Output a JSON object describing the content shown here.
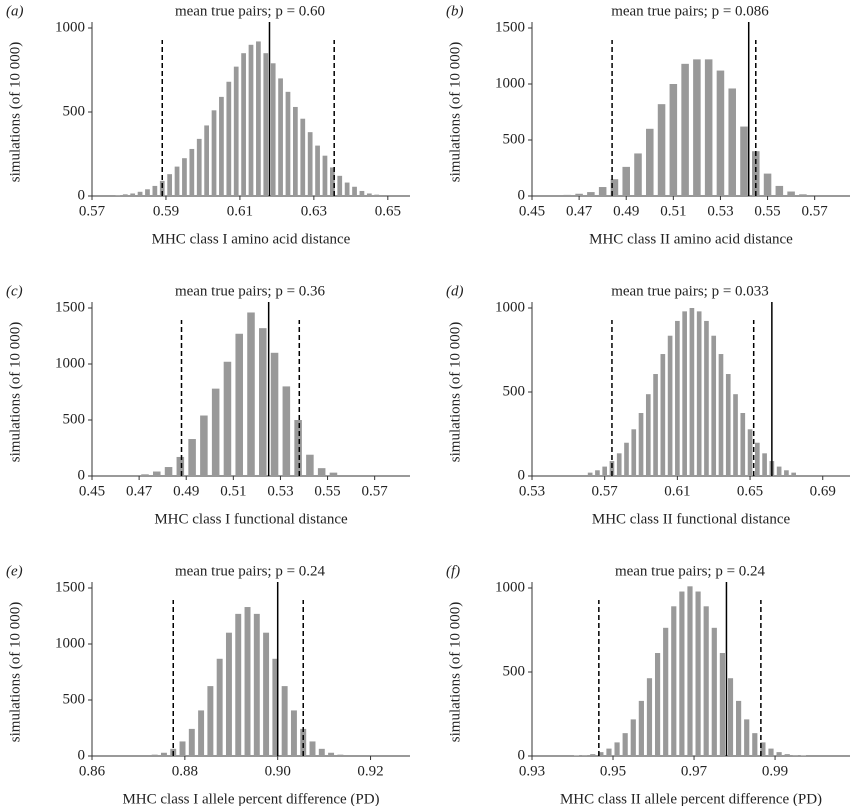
{
  "chart_data": [
    {
      "type": "bar",
      "panel": "(a)",
      "title": "mean true pairs; p = 0.60",
      "xlabel": "MHC class I amino acid distance",
      "ylabel": "simulations (of 10 000)",
      "color": "#999999",
      "x": [
        0.577,
        0.579,
        0.581,
        0.583,
        0.585,
        0.587,
        0.589,
        0.591,
        0.593,
        0.595,
        0.597,
        0.599,
        0.601,
        0.603,
        0.605,
        0.607,
        0.609,
        0.611,
        0.613,
        0.615,
        0.617,
        0.619,
        0.621,
        0.623,
        0.625,
        0.627,
        0.629,
        0.631,
        0.633,
        0.635,
        0.637,
        0.639,
        0.641,
        0.643,
        0.645,
        0.647
      ],
      "values": [
        5,
        10,
        15,
        25,
        40,
        60,
        90,
        130,
        175,
        225,
        280,
        340,
        420,
        510,
        590,
        680,
        770,
        850,
        900,
        920,
        850,
        790,
        700,
        620,
        530,
        460,
        380,
        300,
        240,
        170,
        120,
        80,
        55,
        30,
        15,
        8
      ],
      "observed": 0.618,
      "interval": [
        0.589,
        0.6355
      ],
      "xlim": [
        0.57,
        0.656
      ],
      "xticks": [
        0.57,
        0.59,
        0.61,
        0.63,
        0.65
      ],
      "ylim": [
        0,
        1000
      ],
      "yticks": [
        0,
        500,
        1000
      ]
    },
    {
      "type": "bar",
      "panel": "(b)",
      "title": "mean true pairs; p = 0.086",
      "xlabel": "MHC class II amino acid distance",
      "ylabel": "simulations (of 10 000)",
      "color": "#999999",
      "x": [
        0.465,
        0.47,
        0.475,
        0.48,
        0.485,
        0.49,
        0.495,
        0.5,
        0.505,
        0.51,
        0.515,
        0.52,
        0.525,
        0.53,
        0.535,
        0.54,
        0.545,
        0.55,
        0.555,
        0.56,
        0.565
      ],
      "values": [
        10,
        20,
        35,
        80,
        150,
        260,
        380,
        600,
        820,
        1000,
        1180,
        1220,
        1220,
        1120,
        960,
        620,
        400,
        200,
        90,
        40,
        15
      ],
      "observed": 0.542,
      "interval": [
        0.484,
        0.545
      ],
      "xlim": [
        0.45,
        0.585
      ],
      "xticks": [
        0.45,
        0.47,
        0.49,
        0.51,
        0.53,
        0.55,
        0.57
      ],
      "ylim": [
        0,
        1500
      ],
      "yticks": [
        0,
        500,
        1000,
        1500
      ]
    },
    {
      "type": "bar",
      "panel": "(c)",
      "title": "mean true pairs; p = 0.36",
      "xlabel": "MHC class I functional distance",
      "ylabel": "simulations (of 10 000)",
      "color": "#999999",
      "x": [
        0.4725,
        0.4775,
        0.4825,
        0.4875,
        0.4925,
        0.4975,
        0.5025,
        0.5075,
        0.5125,
        0.5175,
        0.5225,
        0.5275,
        0.5325,
        0.5375,
        0.5425,
        0.5475,
        0.5525
      ],
      "values": [
        15,
        40,
        80,
        170,
        330,
        540,
        780,
        1020,
        1270,
        1460,
        1320,
        1100,
        800,
        500,
        190,
        70,
        30
      ],
      "observed": 0.525,
      "interval": [
        0.488,
        0.538
      ],
      "xlim": [
        0.45,
        0.585
      ],
      "xticks": [
        0.45,
        0.47,
        0.49,
        0.51,
        0.53,
        0.55,
        0.57
      ],
      "ylim": [
        0,
        1500
      ],
      "yticks": [
        0,
        500,
        1000,
        1500
      ]
    },
    {
      "type": "bar",
      "panel": "(d)",
      "title": "mean true pairs; p = 0.033",
      "xlabel": "MHC class II functional distance",
      "ylabel": "simulations (of 10 000)",
      "color": "#999999",
      "x": [
        0.562,
        0.566,
        0.57,
        0.574,
        0.578,
        0.582,
        0.586,
        0.59,
        0.594,
        0.598,
        0.602,
        0.606,
        0.61,
        0.614,
        0.618,
        0.622,
        0.626,
        0.63,
        0.634,
        0.638,
        0.642,
        0.646,
        0.65,
        0.654,
        0.658,
        0.662,
        0.666,
        0.67,
        0.674
      ],
      "values": [
        20,
        34,
        56,
        89,
        135,
        198,
        278,
        375,
        487,
        607,
        726,
        835,
        923,
        980,
        1000,
        980,
        923,
        835,
        726,
        607,
        487,
        375,
        278,
        198,
        135,
        89,
        56,
        34,
        20
      ],
      "observed": 0.662,
      "interval": [
        0.574,
        0.652
      ],
      "xlim": [
        0.53,
        0.705
      ],
      "xticks": [
        0.53,
        0.57,
        0.61,
        0.65,
        0.69
      ],
      "ylim": [
        0,
        1000
      ],
      "yticks": [
        0,
        500,
        1000
      ]
    },
    {
      "type": "bar",
      "panel": "(e)",
      "title": "mean true pairs; p = 0.24",
      "xlabel": "MHC class I allele percent difference (PD)",
      "ylabel": "simulations (of 10 000)",
      "color": "#999999",
      "x": [
        0.8735,
        0.8755,
        0.8775,
        0.8795,
        0.8815,
        0.8835,
        0.8855,
        0.8875,
        0.8895,
        0.8915,
        0.8935,
        0.8955,
        0.8975,
        0.8995,
        0.9015,
        0.9035,
        0.9055,
        0.9075,
        0.9095,
        0.9115,
        0.9135
      ],
      "values": [
        12,
        29,
        64,
        130,
        242,
        407,
        624,
        868,
        1101,
        1269,
        1330,
        1269,
        1101,
        868,
        624,
        407,
        242,
        130,
        64,
        29,
        12
      ],
      "observed": 0.9,
      "interval": [
        0.8775,
        0.9055
      ],
      "xlim": [
        0.86,
        0.9285
      ],
      "xticks": [
        0.86,
        0.88,
        {
          "value": 0.9,
          "label": "0.90"
        },
        0.92
      ],
      "ylim": [
        0,
        1500
      ],
      "yticks": [
        0,
        500,
        1000,
        1500
      ]
    },
    {
      "type": "bar",
      "panel": "(f)",
      "title": "mean true pairs; p = 0.24",
      "xlabel": "MHC class II allele percent difference (PD)",
      "ylabel": "simulations (of 10 000)",
      "color": "#999999",
      "x": [
        0.941,
        0.943,
        0.945,
        0.947,
        0.949,
        0.951,
        0.953,
        0.955,
        0.957,
        0.959,
        0.961,
        0.963,
        0.965,
        0.967,
        0.969,
        0.971,
        0.973,
        0.975,
        0.977,
        0.979,
        0.981,
        0.983,
        0.985,
        0.987,
        0.989,
        0.991,
        0.993,
        0.995,
        0.997
      ],
      "values": [
        2,
        5,
        11,
        23,
        44,
        81,
        136,
        218,
        328,
        463,
        613,
        763,
        891,
        979,
        1010,
        979,
        891,
        763,
        613,
        463,
        328,
        218,
        136,
        81,
        44,
        23,
        11,
        5,
        2
      ],
      "observed": 0.978,
      "interval": [
        0.9465,
        0.9865
      ],
      "xlim": [
        0.93,
        1.0085
      ],
      "xticks": [
        0.93,
        0.95,
        0.97,
        0.99
      ],
      "ylim": [
        0,
        1000
      ],
      "yticks": [
        0,
        500,
        1000
      ]
    }
  ]
}
